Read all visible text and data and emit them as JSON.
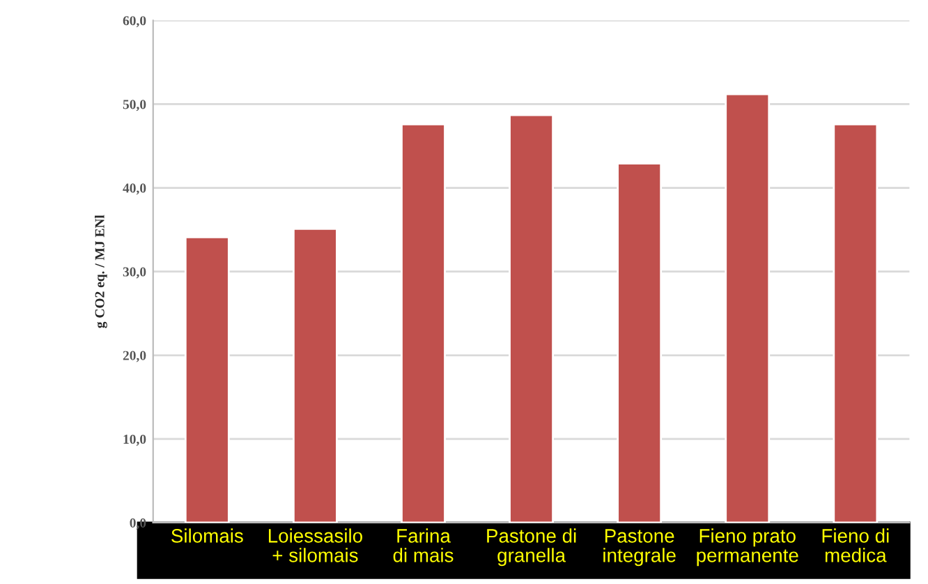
{
  "chart_data": {
    "type": "bar",
    "ylabel": "g CO2 eq. / MJ ENl",
    "categories": [
      "Silomais",
      "Loiessasilo\n+ silomais",
      "Farina\ndi mais",
      "Pastone di\ngranella",
      "Pastone\nintegrale",
      "Fieno prato\npermanente",
      "Fieno di\nmedica"
    ],
    "values": [
      34.1,
      35.1,
      47.6,
      48.7,
      42.9,
      51.2,
      47.6
    ],
    "color": "#c0504d",
    "ylim": [
      0,
      60
    ],
    "yticks": [
      {
        "value": 0,
        "label": "0,0"
      },
      {
        "value": 10,
        "label": "10,0"
      },
      {
        "value": 20,
        "label": "20,0"
      },
      {
        "value": 30,
        "label": "30,0"
      },
      {
        "value": 40,
        "label": "40,0"
      },
      {
        "value": 50,
        "label": "50,0"
      },
      {
        "value": 60,
        "label": "60,0"
      }
    ],
    "grid": "y"
  }
}
